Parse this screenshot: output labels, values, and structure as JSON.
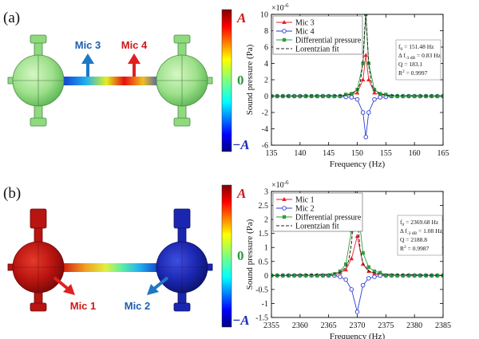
{
  "panels": [
    {
      "label": "(a)",
      "mic_labels": [
        "Mic 3",
        "Mic 4"
      ],
      "colorbar_labels": [
        "A",
        "0",
        "−A"
      ]
    },
    {
      "label": "(b)",
      "mic_labels": [
        "Mic 1",
        "Mic 2"
      ],
      "colorbar_labels": [
        "A",
        "0",
        "−A"
      ]
    }
  ],
  "chart_data": [
    {
      "type": "line",
      "x_label": "Frequency (Hz)",
      "y_label": "Sound pressure (Pa)",
      "y_multiplier": {
        "base": "×10",
        "exponent": "-6"
      },
      "xlim": [
        135,
        165
      ],
      "xticks": [
        135,
        140,
        145,
        150,
        155,
        160,
        165
      ],
      "ylim": [
        -6,
        10
      ],
      "yticks": [
        -6,
        -4,
        -2,
        0,
        2,
        4,
        6,
        8,
        10
      ],
      "legend": "upper left",
      "x": [
        135,
        136,
        137,
        138,
        139,
        140,
        141,
        142,
        143,
        144,
        145,
        146,
        147,
        148,
        149,
        150,
        151,
        151.5,
        152,
        153,
        154,
        155,
        156,
        157,
        158,
        159,
        160,
        161,
        162,
        163,
        164,
        165
      ],
      "series": [
        {
          "name": "Mic 3",
          "color": "#e8222a",
          "marker": "triangle",
          "dashed": false,
          "values": [
            0,
            0,
            0,
            0,
            0,
            0,
            0,
            0,
            0,
            0,
            0,
            0,
            0,
            0.1,
            0.15,
            0.4,
            2,
            5,
            2,
            0.4,
            0.15,
            0.1,
            0,
            0,
            0,
            0,
            0,
            0,
            0,
            0,
            0,
            0
          ]
        },
        {
          "name": "Mic 4",
          "color": "#2b3bd1",
          "marker": "circle",
          "dashed": false,
          "values": [
            0,
            0,
            0,
            0,
            0,
            0,
            0,
            0,
            0,
            0,
            0,
            0,
            0,
            -0.1,
            -0.15,
            -0.4,
            -2,
            -5,
            -2,
            -0.4,
            -0.15,
            -0.1,
            0,
            0,
            0,
            0,
            0,
            0,
            0,
            0,
            0,
            0
          ]
        },
        {
          "name": "Differential pressure",
          "color": "#2f9e3a",
          "marker": "square",
          "dashed": false,
          "values": [
            0,
            0,
            0,
            0,
            0,
            0,
            0,
            0,
            0,
            0,
            0,
            0,
            0,
            0.2,
            0.3,
            0.8,
            4,
            10,
            4,
            0.8,
            0.3,
            0.2,
            0,
            0,
            0,
            0,
            0,
            0,
            0,
            0,
            0,
            0
          ]
        },
        {
          "name": "Lorentzian fit",
          "color": "#222222",
          "marker": null,
          "dashed": true,
          "x": [
            135,
            145,
            147,
            148,
            149,
            150,
            150.5,
            151,
            151.25,
            151.5,
            151.75,
            152,
            152.5,
            153,
            154,
            155,
            157,
            165
          ],
          "values": [
            0.02,
            0.04,
            0.085,
            0.14,
            0.27,
            0.73,
            1.52,
            4.27,
            7.65,
            10,
            7.04,
            3.89,
            1.42,
            0.69,
            0.26,
            0.14,
            0.06,
            0.02
          ]
        }
      ],
      "annotation": [
        [
          {
            "text": "f"
          },
          {
            "text": "0",
            "sub": true
          },
          {
            "text": " = 151.48 Hz"
          }
        ],
        [
          {
            "text": "Δ f"
          },
          {
            "text": "-3 dB",
            "sub": true
          },
          {
            "text": " = 0.83 Hz"
          }
        ],
        [
          {
            "text": "Q = 183.1"
          }
        ],
        [
          {
            "text": "R"
          },
          {
            "text": "2",
            "sup": true
          },
          {
            "text": " = 0.9997"
          }
        ]
      ]
    },
    {
      "type": "line",
      "x_label": "Frequency (Hz)",
      "y_label": "Sound pressure (Pa)",
      "y_multiplier": {
        "base": "×10",
        "exponent": "-6"
      },
      "xlim": [
        2355,
        2385
      ],
      "xticks": [
        2355,
        2360,
        2365,
        2370,
        2375,
        2380,
        2385
      ],
      "ylim": [
        -1.5,
        3
      ],
      "yticks": [
        -1.5,
        -1,
        -0.5,
        0,
        0.5,
        1,
        1.5,
        2,
        2.5,
        3
      ],
      "legend": "upper left",
      "x": [
        2355,
        2356,
        2357,
        2358,
        2359,
        2360,
        2361,
        2362,
        2363,
        2364,
        2365,
        2366,
        2367,
        2368,
        2369,
        2370,
        2371,
        2372,
        2373,
        2374,
        2375,
        2376,
        2377,
        2378,
        2379,
        2380,
        2381,
        2382,
        2383,
        2384,
        2385
      ],
      "series": [
        {
          "name": "Mic 1",
          "color": "#e8222a",
          "marker": "triangle",
          "dashed": false,
          "values": [
            0,
            0,
            0,
            0,
            0,
            0,
            0,
            0,
            0,
            0,
            0,
            0,
            0.1,
            0.2,
            0.6,
            1.4,
            0.4,
            0.15,
            0.08,
            0,
            0,
            0,
            0,
            0,
            0,
            0,
            0,
            0,
            0,
            0,
            0
          ]
        },
        {
          "name": "Mic 2",
          "color": "#2b3bd1",
          "marker": "circle",
          "dashed": false,
          "values": [
            0,
            0,
            0,
            0,
            0,
            0,
            0,
            0,
            0,
            0,
            0,
            0,
            -0.05,
            -0.15,
            -0.5,
            -1.3,
            -0.35,
            -0.1,
            -0.05,
            0,
            0,
            0,
            0,
            0,
            0,
            0,
            0,
            0,
            0,
            0,
            0
          ]
        },
        {
          "name": "Differential pressure",
          "color": "#2f9e3a",
          "marker": "square",
          "dashed": false,
          "values": [
            0,
            0,
            0,
            0,
            0,
            0,
            0,
            0,
            0,
            0,
            0,
            0.05,
            0.15,
            0.4,
            1.6,
            2.65,
            0.8,
            0.3,
            0.15,
            0.1,
            0,
            0,
            0,
            0,
            0,
            0,
            0,
            0,
            0,
            0,
            0
          ]
        },
        {
          "name": "Lorentzian fit",
          "color": "#222222",
          "marker": null,
          "dashed": true,
          "x": [
            2355,
            2365,
            2367,
            2368,
            2368.5,
            2369,
            2369.3,
            2369.68,
            2370,
            2370.5,
            2371,
            2372,
            2374,
            2385
          ],
          "values": [
            0,
            0.039,
            0.117,
            0.28,
            0.52,
            1.16,
            2,
            3,
            2.22,
            0.91,
            0.43,
            0.15,
            0.046,
            0
          ]
        }
      ],
      "annotation": [
        [
          {
            "text": "f"
          },
          {
            "text": "0",
            "sub": true
          },
          {
            "text": " = 2369.68 Hz"
          }
        ],
        [
          {
            "text": "Δ f"
          },
          {
            "text": "-3 dB",
            "sub": true
          },
          {
            "text": " = 1.08 Hz"
          }
        ],
        [
          {
            "text": "Q = 2188.8"
          }
        ],
        [
          {
            "text": "R"
          },
          {
            "text": "2",
            "sup": true
          },
          {
            "text": " = 0.9987"
          }
        ]
      ]
    }
  ]
}
